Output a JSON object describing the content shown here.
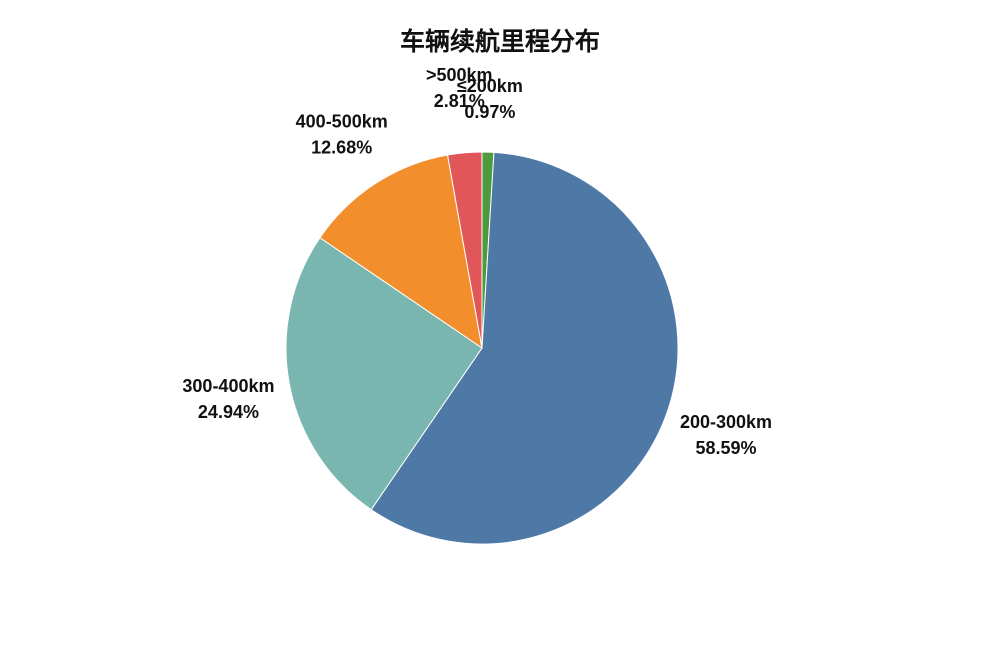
{
  "chart_data": {
    "type": "pie",
    "title": "车辆续航里程分布",
    "start_angle_deg": 0,
    "direction": "clockwise",
    "slices": [
      {
        "label": "≤200km",
        "value": 0.97,
        "percent_text": "0.97%",
        "color": "#4e9a3f"
      },
      {
        "label": "200-300km",
        "value": 58.59,
        "percent_text": "58.59%",
        "color": "#4e79a7"
      },
      {
        "label": "300-400km",
        "value": 24.94,
        "percent_text": "24.94%",
        "color": "#79b6b0"
      },
      {
        "label": "400-500km",
        "value": 12.68,
        "percent_text": "12.68%",
        "color": "#f28e2b"
      },
      {
        "label": ">500km",
        "value": 2.81,
        "percent_text": "2.81%",
        "color": "#e15759"
      }
    ]
  }
}
